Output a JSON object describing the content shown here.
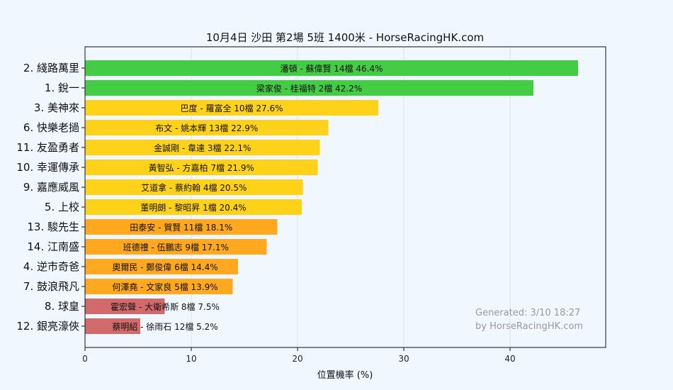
{
  "chart_data": {
    "type": "bar",
    "orientation": "horizontal",
    "title": "10月4日  沙田  第2場  5班  1400米 - HorseRacingHK.com",
    "xlabel": "位置機率 (%)",
    "xlim": [
      0,
      49
    ],
    "xticks": [
      "0",
      "10",
      "20",
      "30",
      "40"
    ],
    "grid": "vertical",
    "categories": [
      "2. 綫路萬里",
      "1. 銳一",
      "3. 美神來",
      "6. 快樂老撾",
      "11. 友盈勇者",
      "10. 幸運傳承",
      "9. 嘉應威風",
      "5. 上校",
      "13. 駿先生",
      "14. 江南盛",
      "4. 逆市奇爸",
      "7. 鼓浪飛凡",
      "8. 球皇",
      "12. 銀亮濠俠"
    ],
    "values": [
      46.4,
      42.2,
      27.6,
      22.9,
      22.1,
      21.9,
      20.5,
      20.4,
      18.1,
      17.1,
      14.4,
      13.9,
      7.5,
      5.2
    ],
    "bar_labels": [
      "潘頓 - 蘇偉賢 14檔  46.4%",
      "梁家俊 - 桂福特 2檔  42.2%",
      "巴度 - 羅富全 10檔  27.6%",
      "布文 - 姚本輝 13檔  22.9%",
      "金誠剛 - 韋達 3檔  22.1%",
      "黃智弘 - 方嘉柏 7檔  21.9%",
      "艾道拿 - 蔡約翰 4檔  20.5%",
      "董明朗 - 黎昭昇 1檔  20.4%",
      "田泰安 - 賀賢 11檔  18.1%",
      "班德禮 - 伍鵬志 9檔  17.1%",
      "奧爾民 - 鄭俊偉 6檔  14.4%",
      "何澤堯 - 文家良 5檔  13.9%",
      "霍宏聲 - 大衛希斯 8檔  7.5%",
      "蔡明紹 - 徐雨石 12檔  5.2%"
    ],
    "colors": [
      "#44cc44",
      "#44cc44",
      "#ffd21a",
      "#ffd21a",
      "#ffd21a",
      "#ffd21a",
      "#ffd21a",
      "#ffd21a",
      "#ffa820",
      "#ffa820",
      "#ffa820",
      "#ffa820",
      "#d2696a",
      "#d2696a"
    ],
    "watermark": [
      "Generated: 3/10 18:27",
      "by HorseRacingHK.com"
    ]
  }
}
